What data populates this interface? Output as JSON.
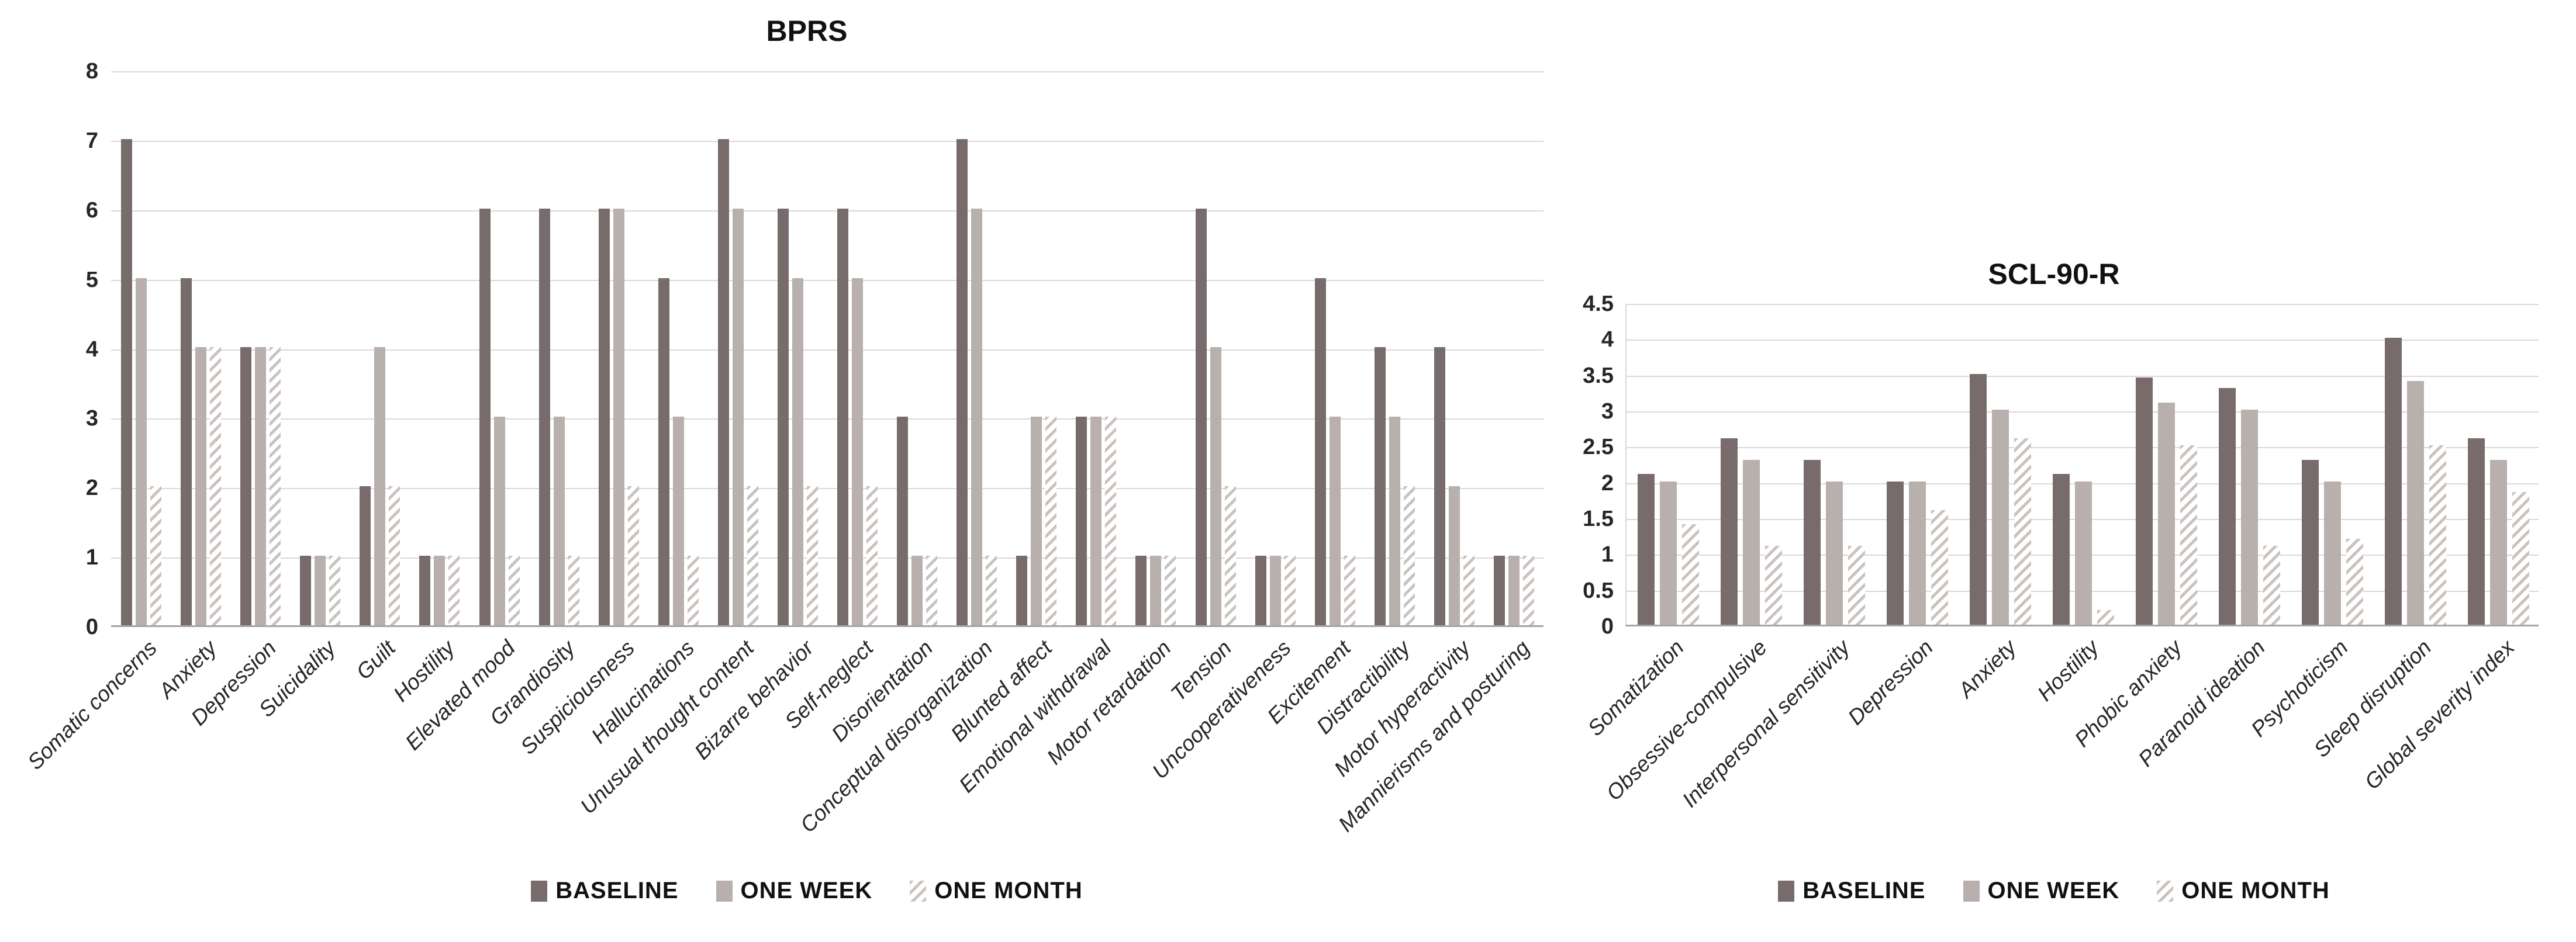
{
  "figure": {
    "background": "#ffffff"
  },
  "colors": {
    "baseline": "#776c6b",
    "one_week": "#b8b0ac",
    "one_month_stripe": "#c9c2be",
    "gridline": "#d9d9d9",
    "axis_line": "#a9a3a1",
    "text": "#262626"
  },
  "legend": {
    "items": [
      "BASELINE",
      "ONE WEEK",
      "ONE MONTH"
    ]
  },
  "chart_data": [
    {
      "type": "bar",
      "title": "BPRS",
      "ylim": [
        0,
        8
      ],
      "yticks": [
        0,
        1,
        2,
        3,
        4,
        5,
        6,
        7,
        8
      ],
      "grid": true,
      "legend_position": "bottom",
      "categories": [
        "Somatic concerns",
        "Anxiety",
        "Depression",
        "Suicidality",
        "Guilt",
        "Hostility",
        "Elevated mood",
        "Grandiosity",
        "Suspiciousness",
        "Hallucinations",
        "Unusual thought content",
        "Bizarre behavior",
        "Self-neglect",
        "Disorientation",
        "Conceptual disorganization",
        "Blunted affect",
        "Emotional withdrawal",
        "Motor retardation",
        "Tension",
        "Uncooperativeness",
        "Excitement",
        "Distractibility",
        "Motor hyperactivity",
        "Mannierisms and posturing"
      ],
      "series": [
        {
          "name": "BASELINE",
          "values": [
            7,
            5,
            4,
            1,
            2,
            1,
            6,
            6,
            6,
            5,
            7,
            6,
            6,
            3,
            7,
            1,
            3,
            1,
            6,
            1,
            5,
            4,
            4,
            1
          ]
        },
        {
          "name": "ONE WEEK",
          "values": [
            5,
            4,
            4,
            1,
            4,
            1,
            3,
            3,
            6,
            3,
            6,
            5,
            5,
            1,
            6,
            3,
            3,
            1,
            4,
            1,
            3,
            3,
            2,
            1
          ]
        },
        {
          "name": "ONE MONTH",
          "values": [
            2,
            4,
            4,
            1,
            2,
            1,
            1,
            1,
            2,
            1,
            2,
            2,
            2,
            1,
            1,
            3,
            3,
            1,
            2,
            1,
            1,
            2,
            1,
            1
          ]
        }
      ]
    },
    {
      "type": "bar",
      "title": "SCL-90-R",
      "ylim": [
        0,
        4.5
      ],
      "yticks": [
        0,
        0.5,
        1,
        1.5,
        2,
        2.5,
        3,
        3.5,
        4,
        4.5
      ],
      "grid": true,
      "legend_position": "bottom",
      "categories": [
        "Somatization",
        "Obsessive-compulsive",
        "Interpersonal sensitivity",
        "Depression",
        "Anxiety",
        "Hostility",
        "Phobic anxiety",
        "Paranoid ideation",
        "Psychoticism",
        "Sleep disruption",
        "Global severity index"
      ],
      "series": [
        {
          "name": "BASELINE",
          "values": [
            2.1,
            2.6,
            2.3,
            2.0,
            3.5,
            2.1,
            3.45,
            3.3,
            2.3,
            4.0,
            2.6
          ]
        },
        {
          "name": "ONE WEEK",
          "values": [
            2.0,
            2.3,
            2.0,
            2.0,
            3.0,
            2.0,
            3.1,
            3.0,
            2.0,
            3.4,
            2.3
          ]
        },
        {
          "name": "ONE MONTH",
          "values": [
            1.4,
            1.1,
            1.1,
            1.6,
            2.6,
            0.2,
            2.5,
            1.1,
            1.2,
            2.5,
            1.85
          ]
        }
      ]
    }
  ]
}
